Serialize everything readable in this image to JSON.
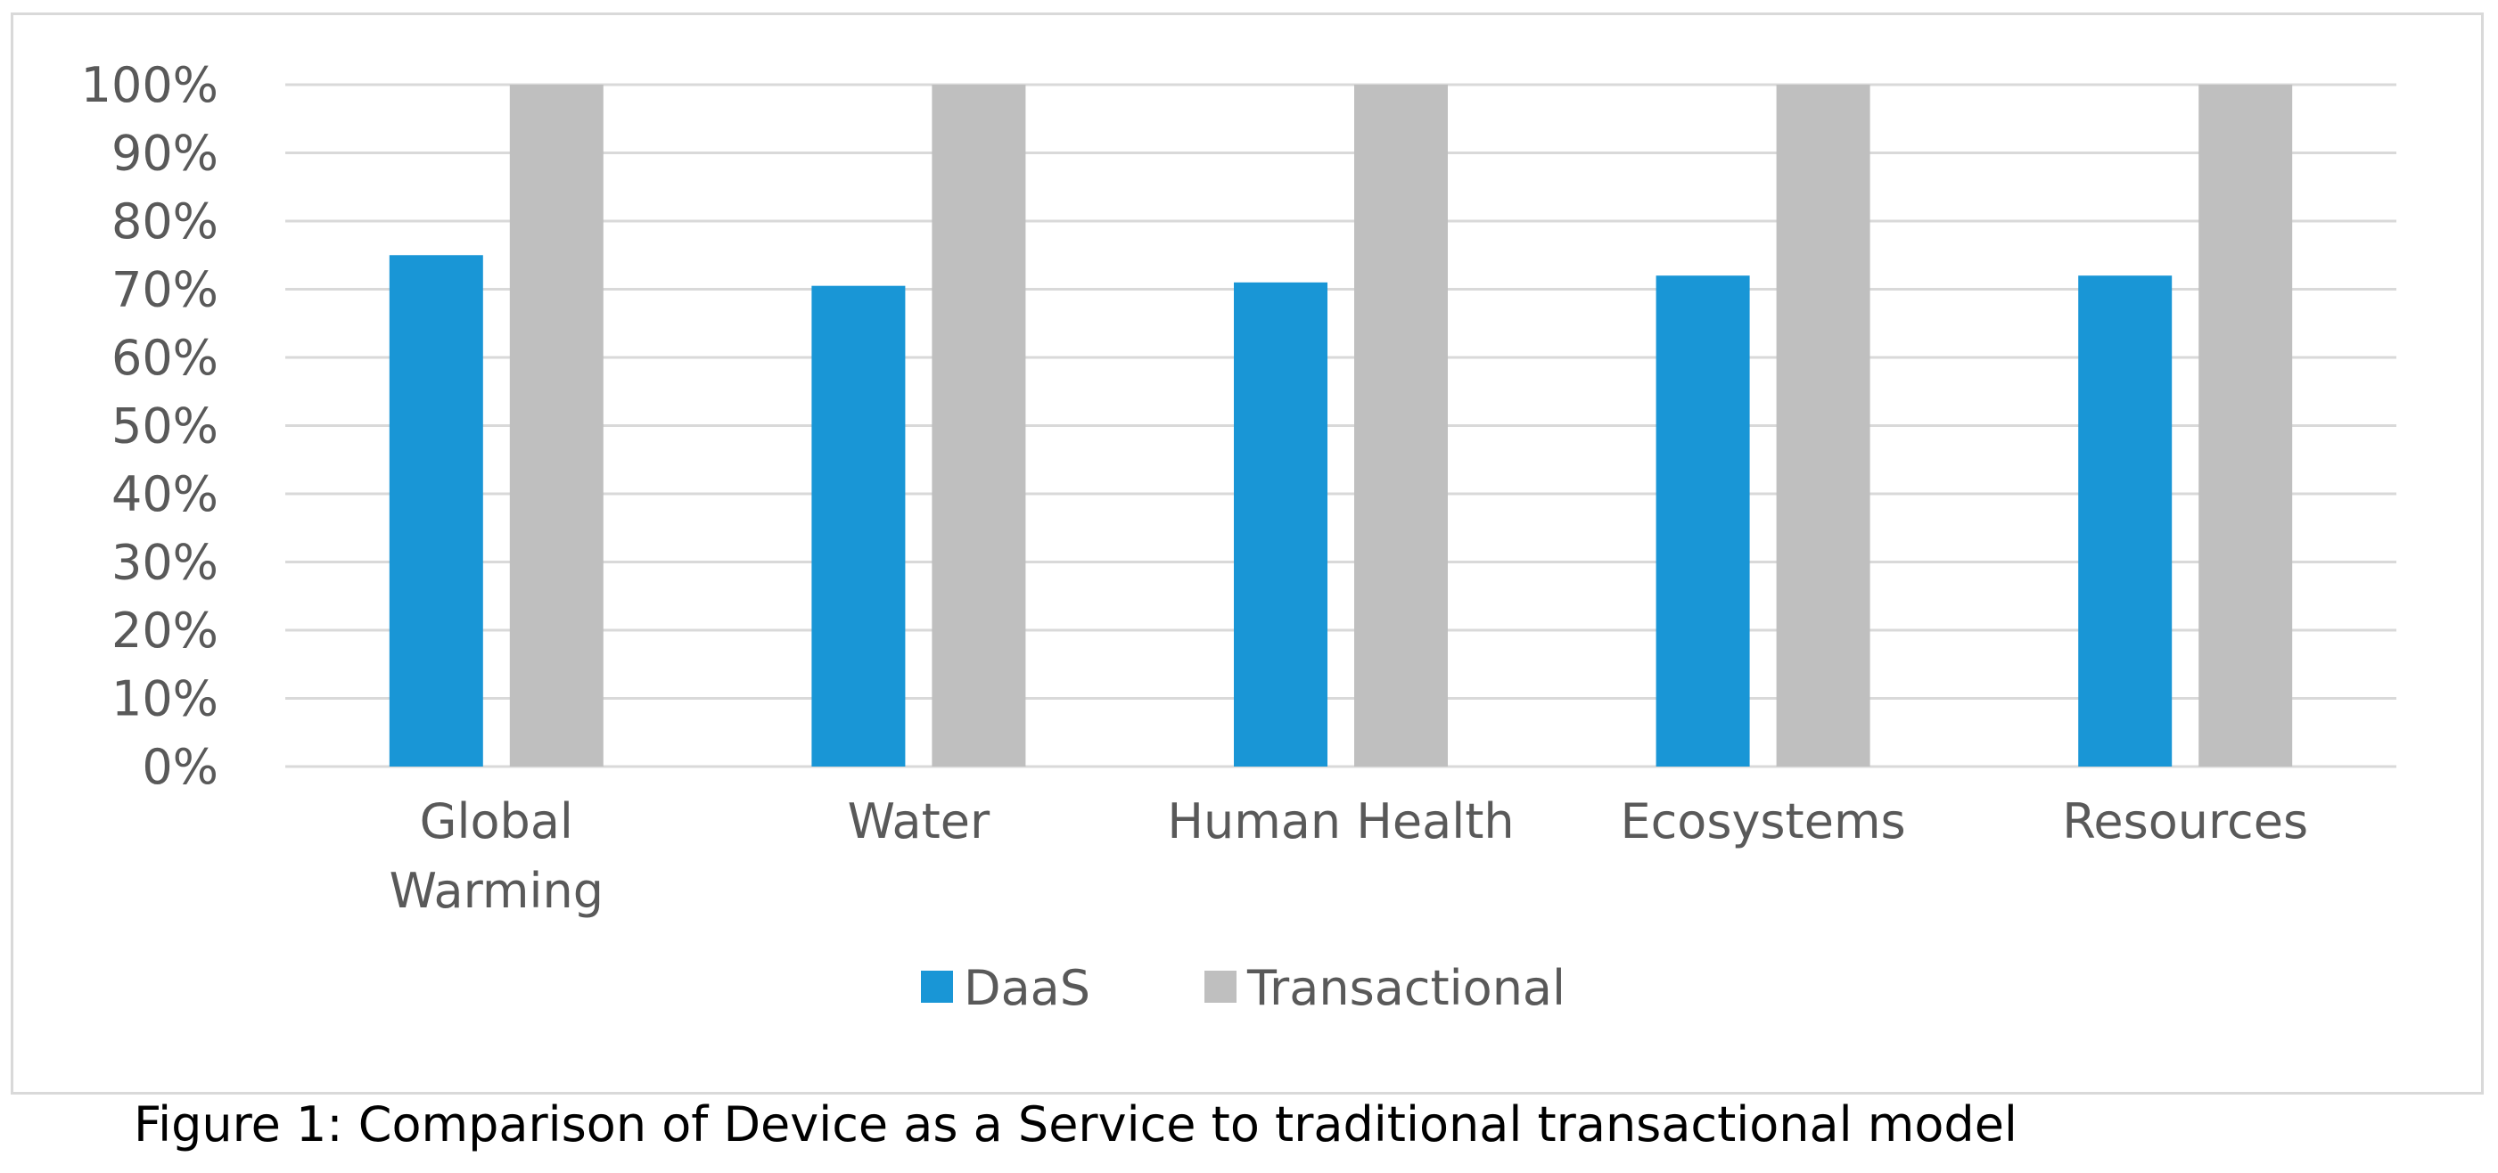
{
  "caption": "Figure 1: Comparison of Device as a Service to traditional transactional model",
  "chart_data": {
    "type": "bar",
    "categories": [
      [
        "Global",
        "Warming"
      ],
      [
        "Water"
      ],
      [
        "Human Health"
      ],
      [
        "Ecosystems"
      ],
      [
        "Resources"
      ]
    ],
    "series": [
      {
        "name": "DaaS",
        "color": "#1996d6",
        "values": [
          0.75,
          0.705,
          0.71,
          0.72,
          0.72
        ]
      },
      {
        "name": "Transactional",
        "color": "#bfbfbf",
        "values": [
          1.0,
          1.0,
          1.0,
          1.0,
          1.0
        ]
      }
    ],
    "yticks": [
      "0%",
      "10%",
      "20%",
      "30%",
      "40%",
      "50%",
      "60%",
      "70%",
      "80%",
      "90%",
      "100%"
    ],
    "ylim": [
      0,
      1
    ],
    "grid": true,
    "legend": "bottom-center",
    "gridline_color": "#d9d9d9",
    "text_color": "#595959"
  }
}
